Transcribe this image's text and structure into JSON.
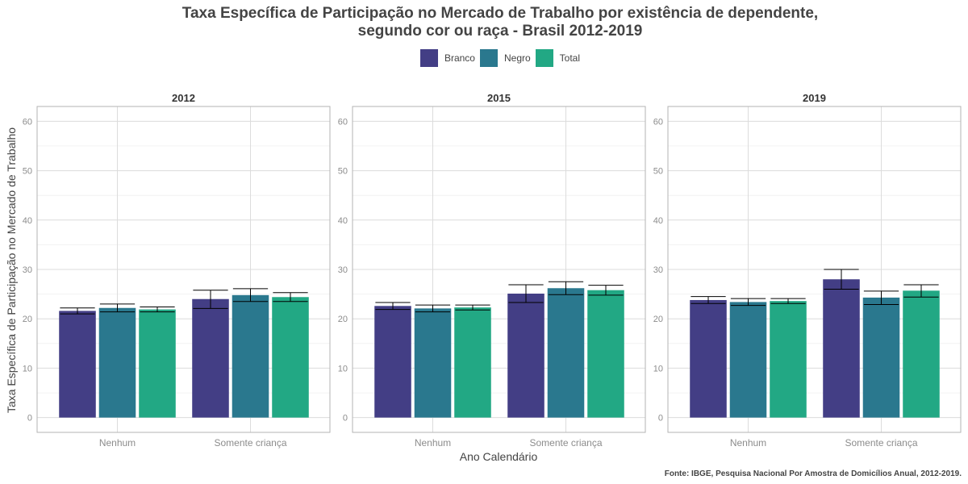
{
  "title_line1": "Taxa Específica de Participação no Mercado de Trabalho por existência de dependente,",
  "title_line2": "segundo cor ou raça - Brasil 2012-2019",
  "legend": [
    {
      "label": "Branco",
      "color": "#433E85"
    },
    {
      "label": "Negro",
      "color": "#2A788E"
    },
    {
      "label": "Total",
      "color": "#22A884"
    }
  ],
  "ylabel": "Taxa Específica de Participação no Mercado de Trabalho",
  "xlabel": "Ano Calendário",
  "caption": "Fonte: IBGE, Pesquisa Nacional Por Amostra de Domicílios Anual, 2012-2019.",
  "chart_data": {
    "type": "bar",
    "facets": [
      "2012",
      "2015",
      "2019"
    ],
    "categories": [
      "Nenhum",
      "Somente criança"
    ],
    "ylim": [
      -3,
      63
    ],
    "yticks": [
      0,
      10,
      20,
      30,
      40,
      50,
      60
    ],
    "grid": true,
    "legend_position": "top",
    "series": [
      {
        "name": "Branco",
        "values": [
          [
            21.6,
            24.0
          ],
          [
            22.6,
            25.1
          ],
          [
            23.8,
            28.0
          ]
        ],
        "errors": [
          [
            [
              21.0,
              22.2
            ],
            [
              22.1,
              25.8
            ]
          ],
          [
            [
              21.9,
              23.3
            ],
            [
              23.3,
              26.9
            ]
          ],
          [
            [
              23.1,
              24.5
            ],
            [
              26.0,
              30.0
            ]
          ]
        ]
      },
      {
        "name": "Negro",
        "values": [
          [
            22.2,
            24.8
          ],
          [
            22.1,
            26.2
          ],
          [
            23.4,
            24.3
          ]
        ],
        "errors": [
          [
            [
              21.4,
              23.0
            ],
            [
              23.5,
              26.1
            ]
          ],
          [
            [
              21.4,
              22.8
            ],
            [
              24.9,
              27.5
            ]
          ],
          [
            [
              22.7,
              24.1
            ],
            [
              22.9,
              25.6
            ]
          ]
        ]
      },
      {
        "name": "Total",
        "values": [
          [
            21.9,
            24.4
          ],
          [
            22.3,
            25.8
          ],
          [
            23.6,
            25.7
          ]
        ],
        "errors": [
          [
            [
              21.4,
              22.4
            ],
            [
              23.5,
              25.3
            ]
          ],
          [
            [
              21.8,
              22.8
            ],
            [
              24.8,
              26.8
            ]
          ],
          [
            [
              23.1,
              24.1
            ],
            [
              24.4,
              26.9
            ]
          ]
        ]
      }
    ]
  }
}
